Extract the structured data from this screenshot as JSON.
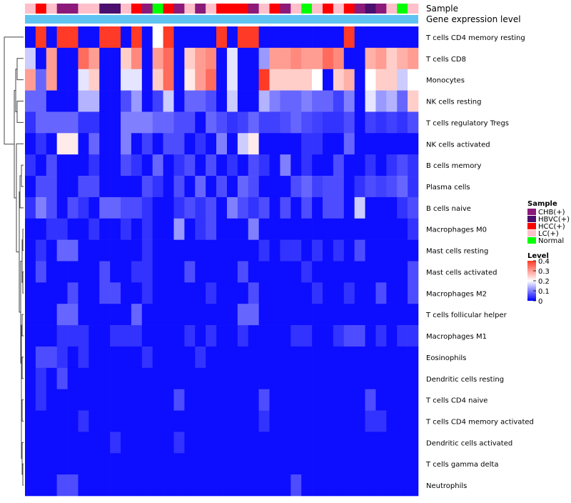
{
  "chart_data": {
    "type": "heatmap",
    "title": "",
    "annotation_tracks": [
      "Sample",
      "Gene expression level"
    ],
    "rows": [
      "T cells CD4 memory resting",
      "T cells CD8",
      "Monocytes",
      "NK cells resting",
      "T cells regulatory  Tregs",
      "NK cells activated",
      "B cells memory",
      "Plasma cells",
      "B cells naive",
      "Macrophages M0",
      "Mast cells resting",
      "Mast cells activated",
      "Macrophages M2",
      "T cells follicular helper",
      "Macrophages M1",
      "Eosinophils",
      "Dendritic cells resting",
      "T cells CD4 naive",
      "T cells CD4 memory activated",
      "Dendritic cells activated",
      "T cells gamma delta",
      "Neutrophils"
    ],
    "sample_groups": [
      "LC(+)",
      "HCC(+)",
      "LC(+)",
      "CHB(+)",
      "CHB(+)",
      "LC(+)",
      "LC(+)",
      "HBVC(+)",
      "HBVC(+)",
      "LC(+)",
      "HCC(+)",
      "CHB(+)",
      "Normal",
      "HCC(+)",
      "CHB(+)",
      "LC(+)",
      "CHB(+)",
      "LC(+)",
      "HCC(+)",
      "HCC(+)",
      "HCC(+)",
      "CHB(+)",
      "LC(+)",
      "HCC(+)",
      "CHB(+)",
      "LC(+)",
      "Normal",
      "LC(+)",
      "HCC(+)",
      "LC(+)",
      "HCC(+)",
      "CHB(+)",
      "HBVC(+)",
      "CHB(+)",
      "LC(+)",
      "Normal",
      "LC(+)"
    ],
    "legend": {
      "sample": {
        "title": "Sample",
        "entries": [
          {
            "label": "CHB(+)",
            "color": "#8B1A7A"
          },
          {
            "label": "HBVC(+)",
            "color": "#4B0F6E"
          },
          {
            "label": "HCC(+)",
            "color": "#FF0000"
          },
          {
            "label": "LC(+)",
            "color": "#FFC0CB"
          },
          {
            "label": "Normal",
            "color": "#00FF00"
          }
        ]
      },
      "level": {
        "title": "Level",
        "ticks": [
          {
            "label": "0.4",
            "value": 0.4
          },
          {
            "label": "0.3",
            "value": 0.3
          },
          {
            "label": "0.2",
            "value": 0.2
          },
          {
            "label": "0.1",
            "value": 0.1
          },
          {
            "label": "0",
            "value": 0.0
          }
        ]
      }
    },
    "color_scale": {
      "low": "#0000FF",
      "mid": "#FFFFFF",
      "high": "#FF3A26",
      "range": [
        0,
        0.4
      ]
    },
    "values": [
      [
        0.01,
        0.4,
        0.01,
        0.4,
        0.4,
        0.01,
        0.01,
        0.4,
        0.4,
        0.01,
        0.4,
        0.01,
        0.2,
        0.4,
        0.01,
        0.01,
        0.01,
        0.01,
        0.4,
        0.01,
        0.4,
        0.4,
        0.01,
        0.01,
        0.01,
        0.01,
        0.01,
        0.01,
        0.01,
        0.01,
        0.4,
        0.01,
        0.01,
        0.01,
        0.01,
        0.01,
        0.01
      ],
      [
        0.16,
        0.01,
        0.3,
        0.01,
        0.01,
        0.35,
        0.3,
        0.01,
        0.01,
        0.25,
        0.32,
        0.01,
        0.3,
        0.35,
        0.01,
        0.25,
        0.3,
        0.32,
        0.01,
        0.18,
        0.01,
        0.01,
        0.12,
        0.3,
        0.3,
        0.32,
        0.3,
        0.3,
        0.35,
        0.32,
        0.01,
        0.01,
        0.28,
        0.3,
        0.25,
        0.28,
        0.3
      ],
      [
        0.3,
        0.08,
        0.3,
        0.01,
        0.01,
        0.18,
        0.25,
        0.01,
        0.01,
        0.18,
        0.18,
        0.01,
        0.25,
        0.35,
        0.01,
        0.22,
        0.3,
        0.35,
        0.01,
        0.18,
        0.01,
        0.01,
        0.4,
        0.25,
        0.25,
        0.25,
        0.25,
        0.2,
        0.01,
        0.25,
        0.28,
        0.01,
        0.2,
        0.25,
        0.25,
        0.16,
        0.2
      ],
      [
        0.08,
        0.08,
        0.01,
        0.01,
        0.01,
        0.14,
        0.14,
        0.01,
        0.01,
        0.06,
        0.12,
        0.01,
        0.05,
        0.16,
        0.01,
        0.08,
        0.08,
        0.06,
        0.01,
        0.16,
        0.01,
        0.01,
        0.14,
        0.1,
        0.08,
        0.08,
        0.1,
        0.08,
        0.08,
        0.05,
        0.1,
        0.01,
        0.18,
        0.12,
        0.14,
        0.08,
        0.25
      ],
      [
        0.04,
        0.08,
        0.08,
        0.08,
        0.08,
        0.04,
        0.04,
        0.01,
        0.01,
        0.1,
        0.1,
        0.1,
        0.08,
        0.08,
        0.06,
        0.06,
        0.01,
        0.08,
        0.06,
        0.04,
        0.05,
        0.08,
        0.05,
        0.05,
        0.06,
        0.08,
        0.06,
        0.05,
        0.04,
        0.04,
        0.06,
        0.01,
        0.05,
        0.04,
        0.05,
        0.04,
        0.06
      ],
      [
        0.01,
        0.04,
        0.01,
        0.22,
        0.22,
        0.01,
        0.08,
        0.01,
        0.01,
        0.1,
        0.01,
        0.05,
        0.01,
        0.06,
        0.06,
        0.01,
        0.04,
        0.01,
        0.1,
        0.01,
        0.16,
        0.22,
        0.01,
        0.01,
        0.01,
        0.01,
        0.04,
        0.04,
        0.01,
        0.01,
        0.08,
        0.01,
        0.01,
        0.01,
        0.01,
        0.01,
        0.01
      ],
      [
        0.04,
        0.01,
        0.06,
        0.01,
        0.01,
        0.01,
        0.04,
        0.01,
        0.01,
        0.06,
        0.04,
        0.01,
        0.08,
        0.01,
        0.04,
        0.06,
        0.01,
        0.06,
        0.01,
        0.04,
        0.01,
        0.06,
        0.04,
        0.01,
        0.1,
        0.01,
        0.04,
        0.01,
        0.01,
        0.06,
        0.01,
        0.01,
        0.04,
        0.01,
        0.04,
        0.06,
        0.04
      ],
      [
        0.01,
        0.06,
        0.06,
        0.01,
        0.01,
        0.06,
        0.06,
        0.01,
        0.01,
        0.01,
        0.01,
        0.06,
        0.04,
        0.01,
        0.06,
        0.01,
        0.08,
        0.01,
        0.06,
        0.01,
        0.08,
        0.06,
        0.01,
        0.01,
        0.01,
        0.06,
        0.08,
        0.05,
        0.06,
        0.06,
        0.01,
        0.04,
        0.06,
        0.05,
        0.06,
        0.08,
        0.04
      ],
      [
        0.04,
        0.1,
        0.06,
        0.01,
        0.06,
        0.04,
        0.01,
        0.08,
        0.08,
        0.06,
        0.06,
        0.04,
        0.01,
        0.01,
        0.04,
        0.06,
        0.04,
        0.06,
        0.01,
        0.1,
        0.06,
        0.04,
        0.06,
        0.01,
        0.06,
        0.01,
        0.06,
        0.01,
        0.06,
        0.06,
        0.01,
        0.16,
        0.01,
        0.01,
        0.01,
        0.04,
        0.06
      ],
      [
        0.01,
        0.01,
        0.04,
        0.04,
        0.01,
        0.01,
        0.04,
        0.01,
        0.01,
        0.04,
        0.01,
        0.04,
        0.01,
        0.01,
        0.12,
        0.01,
        0.04,
        0.06,
        0.01,
        0.01,
        0.01,
        0.1,
        0.01,
        0.01,
        0.01,
        0.01,
        0.01,
        0.01,
        0.01,
        0.01,
        0.01,
        0.01,
        0.01,
        0.01,
        0.01,
        0.01,
        0.04
      ],
      [
        0.01,
        0.04,
        0.01,
        0.08,
        0.08,
        0.01,
        0.01,
        0.01,
        0.01,
        0.01,
        0.01,
        0.04,
        0.01,
        0.01,
        0.01,
        0.01,
        0.01,
        0.01,
        0.01,
        0.01,
        0.01,
        0.01,
        0.04,
        0.01,
        0.04,
        0.04,
        0.01,
        0.04,
        0.01,
        0.04,
        0.01,
        0.06,
        0.01,
        0.01,
        0.01,
        0.01,
        0.01
      ],
      [
        0.01,
        0.06,
        0.01,
        0.01,
        0.01,
        0.01,
        0.01,
        0.06,
        0.01,
        0.01,
        0.04,
        0.04,
        0.01,
        0.01,
        0.01,
        0.06,
        0.01,
        0.01,
        0.01,
        0.01,
        0.06,
        0.01,
        0.01,
        0.01,
        0.01,
        0.01,
        0.04,
        0.01,
        0.01,
        0.01,
        0.01,
        0.01,
        0.01,
        0.01,
        0.01,
        0.01,
        0.06
      ],
      [
        0.01,
        0.01,
        0.01,
        0.01,
        0.06,
        0.01,
        0.01,
        0.06,
        0.06,
        0.01,
        0.01,
        0.04,
        0.01,
        0.01,
        0.01,
        0.01,
        0.01,
        0.04,
        0.01,
        0.01,
        0.01,
        0.06,
        0.01,
        0.01,
        0.01,
        0.01,
        0.01,
        0.04,
        0.01,
        0.01,
        0.04,
        0.01,
        0.01,
        0.06,
        0.01,
        0.01,
        0.06
      ],
      [
        0.01,
        0.01,
        0.01,
        0.08,
        0.08,
        0.01,
        0.01,
        0.01,
        0.01,
        0.01,
        0.08,
        0.01,
        0.01,
        0.01,
        0.01,
        0.01,
        0.01,
        0.01,
        0.01,
        0.01,
        0.08,
        0.08,
        0.01,
        0.01,
        0.01,
        0.01,
        0.01,
        0.01,
        0.01,
        0.01,
        0.01,
        0.01,
        0.01,
        0.01,
        0.01,
        0.01,
        0.01
      ],
      [
        0.01,
        0.01,
        0.01,
        0.04,
        0.04,
        0.04,
        0.01,
        0.01,
        0.04,
        0.04,
        0.04,
        0.01,
        0.01,
        0.01,
        0.01,
        0.04,
        0.01,
        0.04,
        0.01,
        0.01,
        0.04,
        0.01,
        0.01,
        0.01,
        0.01,
        0.04,
        0.04,
        0.01,
        0.01,
        0.04,
        0.06,
        0.06,
        0.01,
        0.04,
        0.01,
        0.04,
        0.04
      ],
      [
        0.01,
        0.06,
        0.06,
        0.04,
        0.01,
        0.04,
        0.01,
        0.01,
        0.01,
        0.01,
        0.01,
        0.04,
        0.01,
        0.01,
        0.01,
        0.01,
        0.04,
        0.01,
        0.01,
        0.01,
        0.01,
        0.01,
        0.01,
        0.01,
        0.01,
        0.01,
        0.01,
        0.01,
        0.01,
        0.01,
        0.01,
        0.01,
        0.01,
        0.01,
        0.01,
        0.01,
        0.01
      ],
      [
        0.01,
        0.04,
        0.01,
        0.06,
        0.01,
        0.01,
        0.01,
        0.01,
        0.01,
        0.01,
        0.01,
        0.01,
        0.01,
        0.01,
        0.01,
        0.01,
        0.01,
        0.01,
        0.01,
        0.01,
        0.01,
        0.01,
        0.01,
        0.01,
        0.01,
        0.01,
        0.01,
        0.01,
        0.01,
        0.01,
        0.01,
        0.01,
        0.01,
        0.01,
        0.01,
        0.01,
        0.01
      ],
      [
        0.01,
        0.04,
        0.01,
        0.01,
        0.01,
        0.01,
        0.01,
        0.01,
        0.01,
        0.01,
        0.01,
        0.01,
        0.01,
        0.01,
        0.06,
        0.01,
        0.01,
        0.01,
        0.01,
        0.01,
        0.01,
        0.01,
        0.06,
        0.01,
        0.01,
        0.01,
        0.01,
        0.01,
        0.01,
        0.01,
        0.01,
        0.01,
        0.06,
        0.01,
        0.01,
        0.01,
        0.01
      ],
      [
        0.01,
        0.01,
        0.01,
        0.01,
        0.01,
        0.04,
        0.01,
        0.01,
        0.01,
        0.01,
        0.01,
        0.01,
        0.01,
        0.01,
        0.01,
        0.01,
        0.01,
        0.01,
        0.01,
        0.01,
        0.01,
        0.01,
        0.04,
        0.01,
        0.01,
        0.01,
        0.01,
        0.01,
        0.01,
        0.01,
        0.01,
        0.01,
        0.04,
        0.04,
        0.01,
        0.01,
        0.01
      ],
      [
        0.01,
        0.01,
        0.01,
        0.01,
        0.01,
        0.01,
        0.01,
        0.01,
        0.04,
        0.01,
        0.01,
        0.01,
        0.01,
        0.01,
        0.04,
        0.01,
        0.01,
        0.01,
        0.01,
        0.01,
        0.01,
        0.01,
        0.01,
        0.01,
        0.01,
        0.01,
        0.01,
        0.01,
        0.01,
        0.01,
        0.01,
        0.01,
        0.01,
        0.01,
        0.01,
        0.01,
        0.01
      ],
      [
        0.01,
        0.01,
        0.01,
        0.01,
        0.01,
        0.01,
        0.01,
        0.01,
        0.01,
        0.01,
        0.01,
        0.01,
        0.01,
        0.01,
        0.01,
        0.01,
        0.01,
        0.01,
        0.01,
        0.01,
        0.01,
        0.01,
        0.01,
        0.01,
        0.01,
        0.01,
        0.01,
        0.01,
        0.01,
        0.01,
        0.01,
        0.01,
        0.01,
        0.01,
        0.01,
        0.01,
        0.01
      ],
      [
        0.01,
        0.01,
        0.01,
        0.06,
        0.06,
        0.01,
        0.01,
        0.01,
        0.01,
        0.01,
        0.01,
        0.01,
        0.01,
        0.01,
        0.01,
        0.01,
        0.01,
        0.01,
        0.01,
        0.01,
        0.01,
        0.01,
        0.01,
        0.01,
        0.01,
        0.06,
        0.01,
        0.01,
        0.01,
        0.01,
        0.01,
        0.01,
        0.01,
        0.01,
        0.01,
        0.01,
        0.01
      ]
    ]
  }
}
